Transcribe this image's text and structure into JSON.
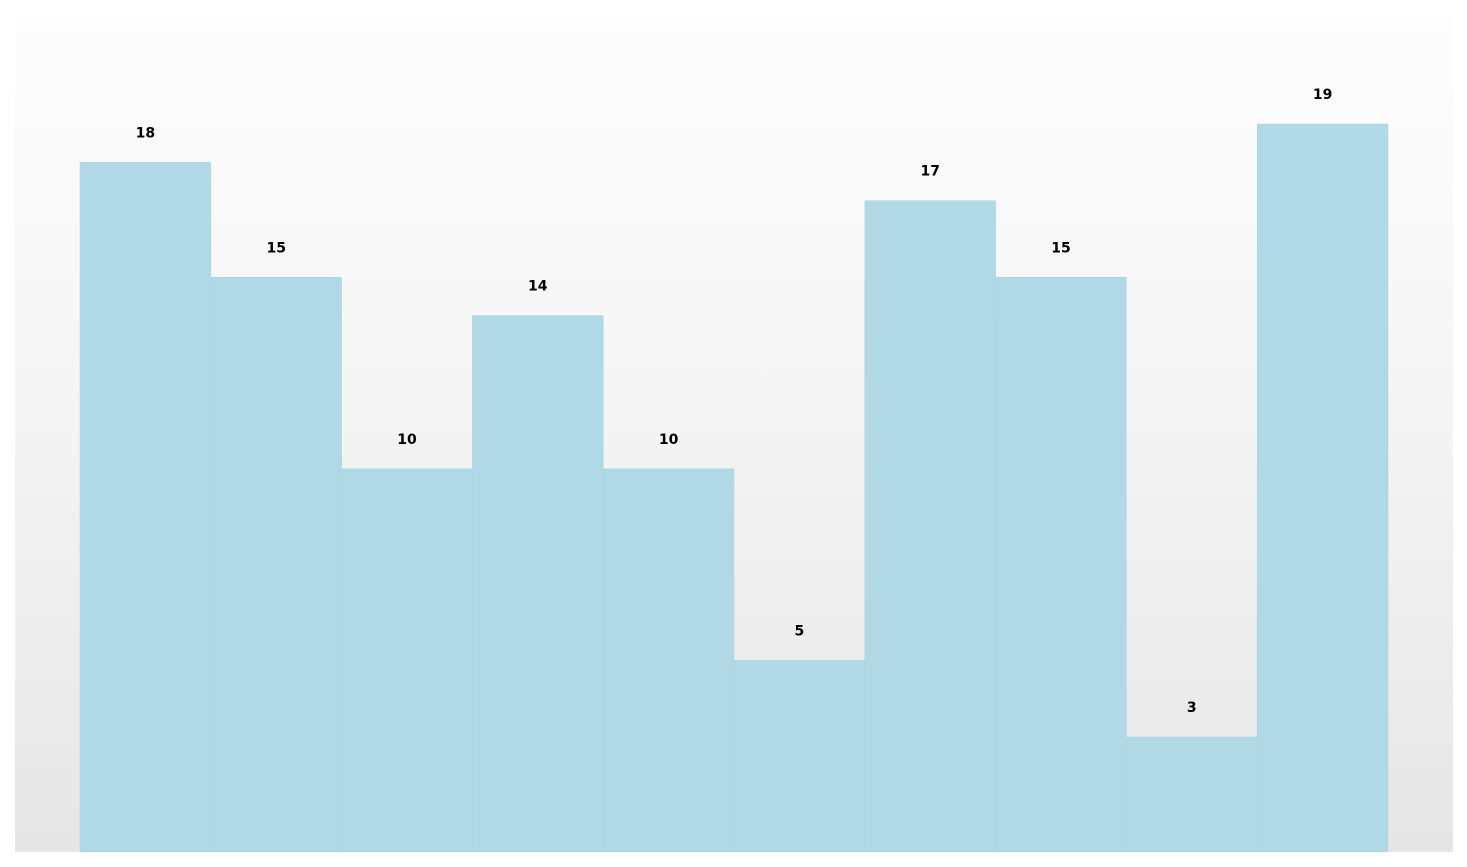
{
  "chart_data": {
    "type": "bar",
    "title": "",
    "xlabel": "",
    "ylabel": "",
    "categories": [
      "",
      "",
      "",
      "",
      "",
      "",
      "",
      "",
      "",
      ""
    ],
    "values": [
      18,
      15,
      10,
      14,
      10,
      5,
      17,
      15,
      3,
      19
    ],
    "ylim": [
      0,
      19
    ],
    "grid": false,
    "legend": "none",
    "show_value_labels": true,
    "colors": {
      "bar": "#b1d8e5",
      "label": "#000000",
      "background_top": "#fdfdfd",
      "background_bottom": "#e6e6e6"
    }
  }
}
